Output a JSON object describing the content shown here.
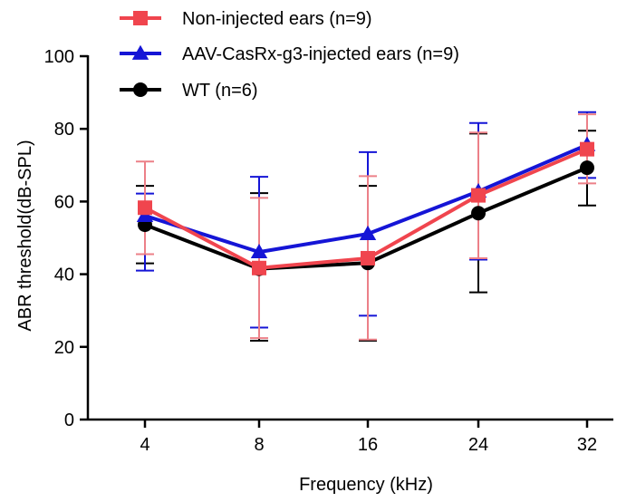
{
  "chart_data": {
    "type": "line",
    "xlabel": "Frequency (kHz)",
    "ylabel": "ABR threshold(dB-SPL)",
    "categories": [
      "4",
      "8",
      "16",
      "24",
      "32"
    ],
    "ylim": [
      0,
      100
    ],
    "yticks": [
      0,
      20,
      40,
      60,
      80,
      100
    ],
    "grid": false,
    "legend_position": "top",
    "series": [
      {
        "name": "Non-injected ears (n=9)",
        "color": "#f0454e",
        "marker": "square",
        "values": [
          58.3,
          41.7,
          44.4,
          61.7,
          74.4
        ],
        "error_upper": [
          71,
          61,
          67,
          79,
          84
        ],
        "error_lower": [
          45.5,
          22.4,
          22,
          44.4,
          65
        ]
      },
      {
        "name": "AAV-CasRx-g3-injected ears (n=9)",
        "color": "#1515d6",
        "marker": "triangle",
        "values": [
          56.1,
          46.1,
          51.1,
          62.8,
          75.6
        ],
        "error_upper": [
          62.2,
          66.8,
          73.6,
          81.6,
          84.6
        ],
        "error_lower": [
          41,
          25.3,
          28.6,
          44,
          66.5
        ]
      },
      {
        "name": "WT (n=6)",
        "color": "#000000",
        "marker": "circle",
        "values": [
          53.6,
          41.5,
          43.1,
          56.8,
          69.3
        ],
        "error_upper": [
          64.3,
          62.3,
          64.3,
          78.7,
          79.5
        ],
        "error_lower": [
          43,
          21.7,
          21.7,
          35,
          58.9
        ]
      }
    ]
  }
}
